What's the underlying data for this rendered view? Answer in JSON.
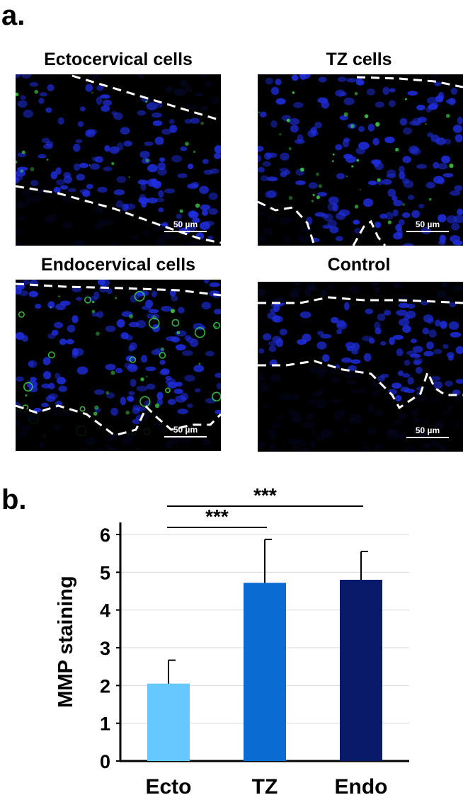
{
  "figure": {
    "panel_a_letter": "a.",
    "panel_b_letter": "b."
  },
  "micrographs": [
    {
      "id": "ecto",
      "title": "Ectocervical cells",
      "scale_label": "50 µm"
    },
    {
      "id": "tz",
      "title": "TZ cells",
      "scale_label": "50 µm"
    },
    {
      "id": "endo",
      "title": "Endocervical cells",
      "scale_label": "50 µm"
    },
    {
      "id": "control",
      "title": "Control",
      "scale_label": "50 µm"
    }
  ],
  "colors": {
    "nuclei_blue": "#1f2ee0",
    "stain_green": "#3fd24a",
    "bar_ecto": "#66c8ff",
    "bar_tz": "#0a6bd3",
    "bar_endo": "#0a1a6b",
    "grid": "#d9d9d9"
  },
  "chart_data": {
    "type": "bar",
    "categories": [
      "Ecto",
      "TZ",
      "Endo"
    ],
    "values": [
      2.05,
      4.72,
      4.8
    ],
    "errors": [
      0.62,
      1.15,
      0.75
    ],
    "ylabel": "MMP staining",
    "xlabel": "",
    "ylim": [
      0,
      6
    ],
    "yticks": [
      0,
      1,
      2,
      3,
      4,
      5,
      6
    ],
    "grid": true,
    "significance": [
      {
        "from": "Ecto",
        "to": "TZ",
        "label": "***"
      },
      {
        "from": "Ecto",
        "to": "Endo",
        "label": "***"
      }
    ]
  }
}
